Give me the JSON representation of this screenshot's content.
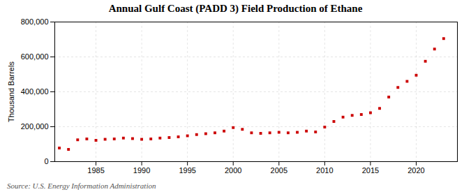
{
  "chart_data": {
    "type": "scatter",
    "title": "Annual Gulf Coast (PADD 3) Field Production of Ethane",
    "ylabel": "Thousand Barrels",
    "source": "Source: U.S. Energy Information Administration",
    "x": [
      1981,
      1982,
      1983,
      1984,
      1985,
      1986,
      1987,
      1988,
      1989,
      1990,
      1991,
      1992,
      1993,
      1994,
      1995,
      1996,
      1997,
      1998,
      1999,
      2000,
      2001,
      2002,
      2003,
      2004,
      2005,
      2006,
      2007,
      2008,
      2009,
      2010,
      2011,
      2012,
      2013,
      2014,
      2015,
      2016,
      2017,
      2018,
      2019,
      2020,
      2021,
      2022,
      2023
    ],
    "values": [
      78000,
      70000,
      125000,
      130000,
      122000,
      128000,
      130000,
      135000,
      132000,
      128000,
      130000,
      135000,
      138000,
      142000,
      148000,
      155000,
      160000,
      165000,
      175000,
      195000,
      185000,
      165000,
      162000,
      165000,
      168000,
      165000,
      168000,
      175000,
      170000,
      198000,
      230000,
      255000,
      265000,
      270000,
      280000,
      305000,
      370000,
      425000,
      460000,
      495000,
      575000,
      645000,
      705000
    ],
    "color": "#cc0000",
    "marker": "square",
    "grid": true,
    "xlim": [
      1980.5,
      2024.5
    ],
    "xticks": [
      1985,
      1990,
      1995,
      2000,
      2005,
      2010,
      2015,
      2020
    ],
    "ylim": [
      0,
      800000
    ],
    "yticks": [
      0,
      {
        "value": 200000,
        "label": "200,000"
      },
      {
        "value": 400000,
        "label": "400,000"
      },
      {
        "value": 600000,
        "label": "600,000"
      },
      {
        "value": 800000,
        "label": "800,000"
      }
    ]
  }
}
